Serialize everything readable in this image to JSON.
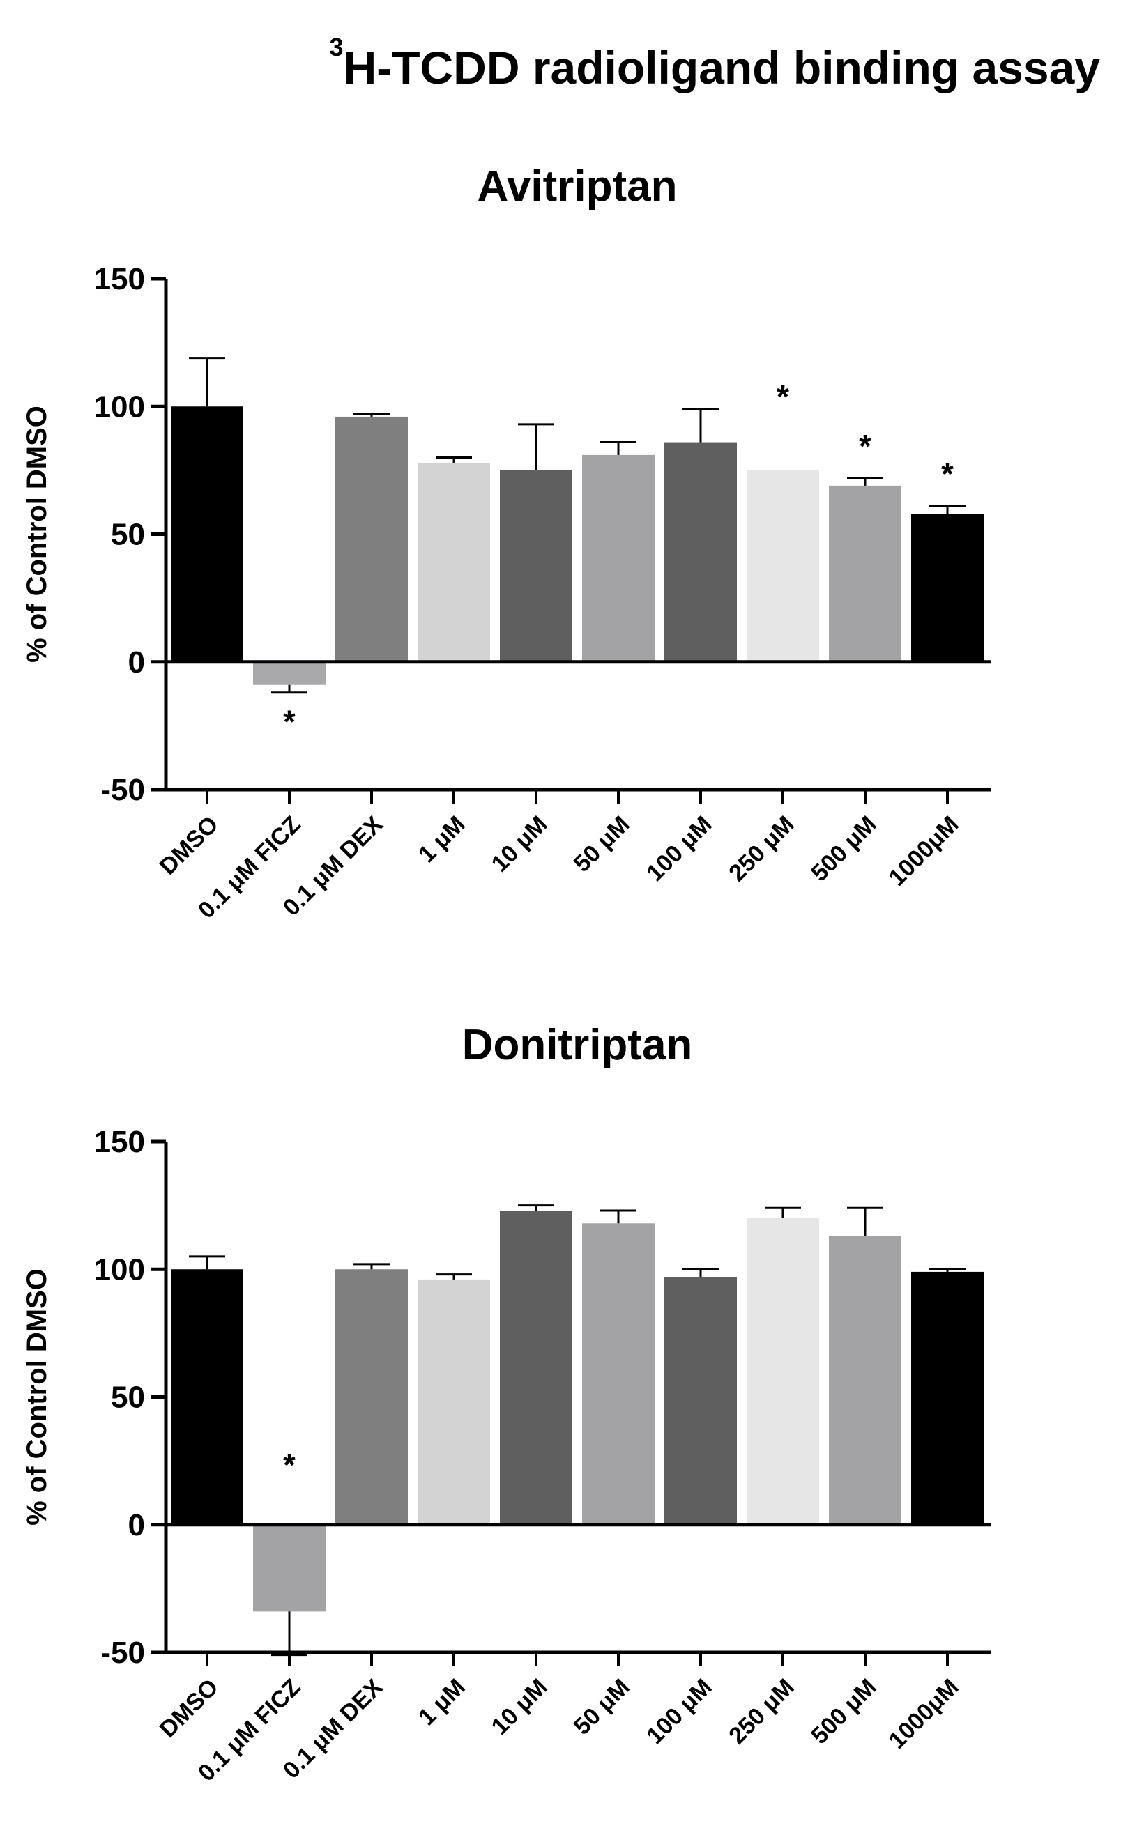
{
  "title": {
    "superscript": "3",
    "text": "H-TCDD radioligand binding assay"
  },
  "chart_data": [
    {
      "type": "bar",
      "title": "Avitriptan",
      "xlabel": "",
      "ylabel": "% of Control DMSO",
      "ylim": [
        -50,
        150
      ],
      "yticks": [
        -50,
        0,
        50,
        100,
        150
      ],
      "grid": false,
      "categories": [
        "DMSO",
        "0.1 μM FICZ",
        "0.1 μM DEX",
        "1 μM",
        "10 μM",
        "50 μM",
        "100 μM",
        "250 μM",
        "500 μM",
        "1000μM"
      ],
      "values": [
        100,
        -9,
        96,
        78,
        75,
        81,
        86,
        75,
        69,
        58
      ],
      "errors": [
        19,
        3,
        1,
        2,
        18,
        5,
        13,
        0,
        3,
        3
      ],
      "significant": [
        false,
        true,
        false,
        false,
        false,
        false,
        false,
        true,
        true,
        true
      ],
      "significance_marker": "*",
      "colors": [
        "#000000",
        "#a9a9ab",
        "#7f7f7f",
        "#d3d3d3",
        "#5f5f5f",
        "#a3a3a6",
        "#5f5f5f",
        "#e6e6e6",
        "#a3a3a6",
        "#000000"
      ]
    },
    {
      "type": "bar",
      "title": "Donitriptan",
      "xlabel": "",
      "ylabel": "% of Control DMSO",
      "ylim": [
        -50,
        150
      ],
      "yticks": [
        -50,
        0,
        50,
        100,
        150
      ],
      "grid": false,
      "categories": [
        "DMSO",
        "0.1 μM FICZ",
        "0.1 μM DEX",
        "1 μM",
        "10 μM",
        "50 μM",
        "100 μM",
        "250 μM",
        "500 μM",
        "1000μM"
      ],
      "values": [
        100,
        -34,
        100,
        96,
        123,
        118,
        97,
        120,
        113,
        99
      ],
      "errors": [
        5,
        17,
        2,
        2,
        2,
        5,
        3,
        4,
        11,
        1
      ],
      "significant": [
        false,
        true,
        false,
        false,
        false,
        false,
        false,
        false,
        false,
        false
      ],
      "significance_marker": "*",
      "colors": [
        "#000000",
        "#a3a3a6",
        "#7f7f7f",
        "#d3d3d3",
        "#5f5f5f",
        "#a3a3a6",
        "#5f5f5f",
        "#e6e6e6",
        "#a3a3a6",
        "#000000"
      ]
    }
  ]
}
